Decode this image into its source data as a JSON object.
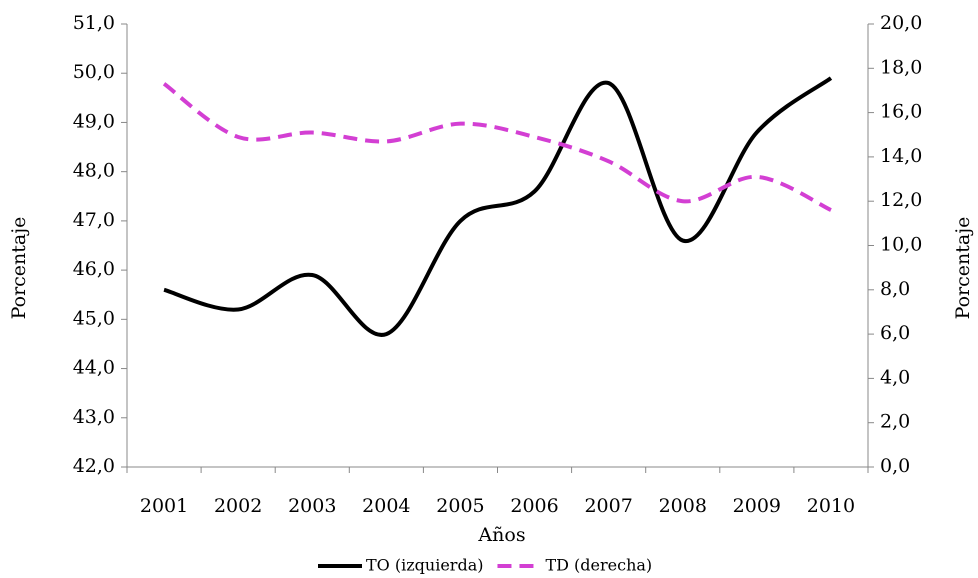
{
  "chart_data": {
    "type": "line",
    "x_label": "Años",
    "y_label": "Porcentaje",
    "y2_label": "Porcentaje",
    "categories": [
      "2001",
      "2002",
      "2003",
      "2004",
      "2005",
      "2006",
      "2007",
      "2008",
      "2009",
      "2010"
    ],
    "series": [
      {
        "name": "TO (izquierda)",
        "color": "#000000",
        "line_style": "solid",
        "values": [
          45.6,
          45.2,
          45.9,
          44.7,
          47.0,
          47.6,
          49.8,
          46.6,
          48.8,
          49.9
        ]
      },
      {
        "name": "TD (derecha)",
        "color": "#d33fd3",
        "line_style": "dashed",
        "axis": "y2",
        "values": [
          17.3,
          14.9,
          15.1,
          14.7,
          15.5,
          14.9,
          13.8,
          12.0,
          13.1,
          11.6
        ]
      }
    ],
    "ylim": [
      42,
      51
    ],
    "yticks": [
      {
        "value": 42,
        "label": "42,0"
      },
      {
        "value": 43,
        "label": "43,0"
      },
      {
        "value": 44,
        "label": "44,0"
      },
      {
        "value": 45,
        "label": "45,0"
      },
      {
        "value": 46,
        "label": "46,0"
      },
      {
        "value": 47,
        "label": "47,0"
      },
      {
        "value": 48,
        "label": "48,0"
      },
      {
        "value": 49,
        "label": "49,0"
      },
      {
        "value": 50,
        "label": "50,0"
      },
      {
        "value": 51,
        "label": "51,0"
      }
    ],
    "y2lim": [
      0,
      20
    ],
    "y2ticks": [
      {
        "value": 0,
        "label": "0,0"
      },
      {
        "value": 2,
        "label": "2,0"
      },
      {
        "value": 4,
        "label": "4,0"
      },
      {
        "value": 6,
        "label": "6,0"
      },
      {
        "value": 8,
        "label": "8,0"
      },
      {
        "value": 10,
        "label": "10,0"
      },
      {
        "value": 12,
        "label": "12,0"
      },
      {
        "value": 14,
        "label": "14,0"
      },
      {
        "value": 16,
        "label": "16,0"
      },
      {
        "value": 18,
        "label": "18,0"
      },
      {
        "value": 20,
        "label": "20,0"
      }
    ],
    "smooth": true,
    "legend": "bottom"
  }
}
